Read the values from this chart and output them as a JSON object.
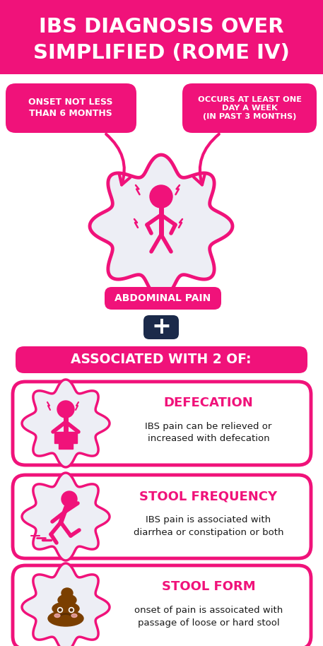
{
  "title_line1": "IBS DIAGNOSIS OVER",
  "title_line2": "SIMPLIFIED (ROME IV)",
  "pink": "#F0127A",
  "dark_navy": "#1B2A4A",
  "light_gray": "#EDEEF5",
  "white": "#FFFFFF",
  "dark_text": "#1a1a1a",
  "box1_text": "ONSET NOT LESS\nTHAN 6 MONTHS",
  "box2_text": "OCCURS AT LEAST ONE\nDAY A WEEK\n(IN PAST 3 MONTHS)",
  "abdominal_label": "ABDOMINAL PAIN",
  "associated_text": "ASSOCIATED WITH 2 OF:",
  "card1_title": "DEFECATION",
  "card1_body": "IBS pain can be relieved or\nincreased with defecation",
  "card2_title": "STOOL FREQUENCY",
  "card2_body": "IBS pain is associated with\ndiarrhea or constipation or both",
  "card3_title": "STOOL FORM",
  "card3_body": "onset of pain is assoicated with\npassage of loose or hard stool",
  "bg_color": "#FFFFFF"
}
